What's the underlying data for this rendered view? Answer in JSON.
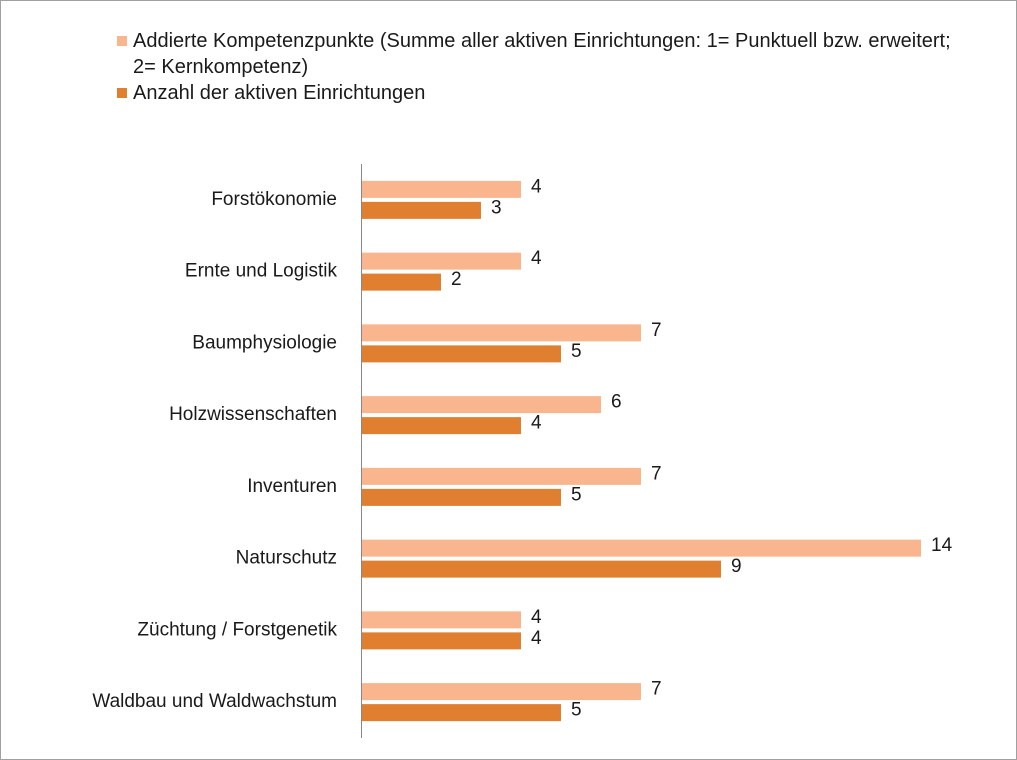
{
  "chart_data": {
    "type": "bar",
    "orientation": "horizontal",
    "categories": [
      "Forstökonomie",
      "Ernte und Logistik",
      "Baumphysiologie",
      "Holzwissenschaften",
      "Inventuren",
      "Naturschutz",
      "Züchtung / Forstgenetik",
      "Waldbau und Waldwachstum"
    ],
    "series": [
      {
        "name": "Addierte Kompetenzpunkte (Summe aller aktiven Einrichtungen: 1= Punktuell bzw. erweitert; 2= Kernkompetenz)",
        "color": "#f9b58e",
        "values": [
          4,
          4,
          7,
          6,
          7,
          14,
          4,
          7
        ]
      },
      {
        "name": "Anzahl der aktiven Einrichtungen",
        "color": "#e07f30",
        "values": [
          3,
          2,
          5,
          4,
          5,
          9,
          4,
          5
        ]
      }
    ],
    "xlim": [
      0,
      16
    ]
  }
}
